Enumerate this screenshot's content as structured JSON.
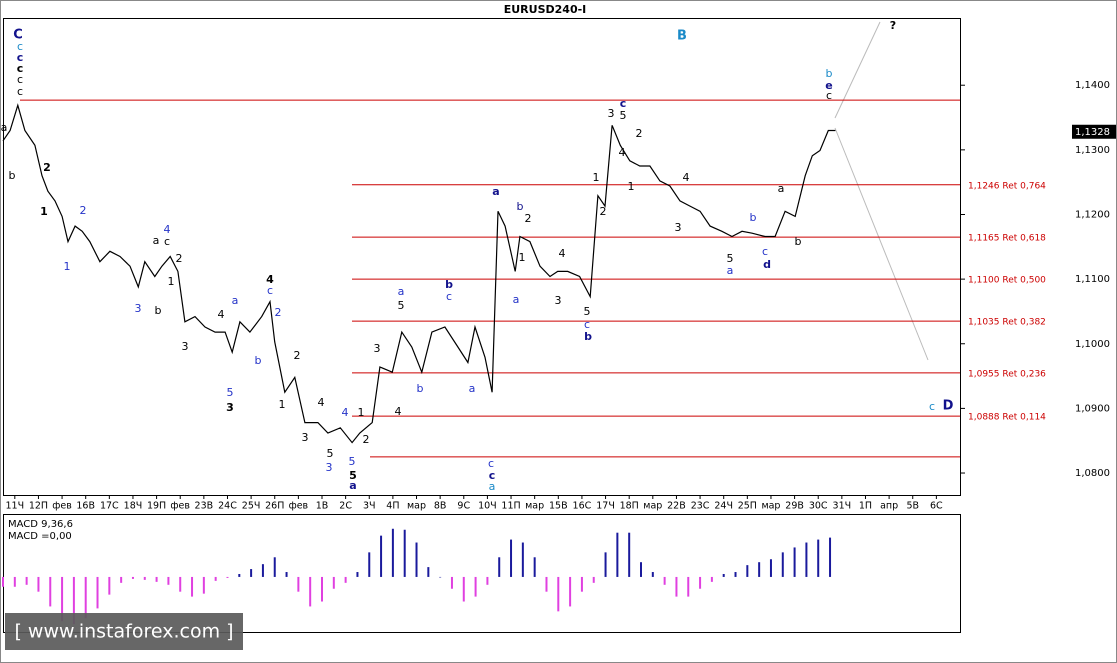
{
  "chart_data": [
    {
      "type": "line",
      "title": "EURUSD240-I",
      "x": [
        -2,
        -0.8,
        0.5,
        1.7,
        3.4,
        4.6,
        5.6,
        6.8,
        8.0,
        9.0,
        10.2,
        11.4,
        12.7,
        14.4,
        16.1,
        17.8,
        19.5,
        20.9,
        22.0,
        23.7,
        24.9,
        26.3,
        27.6,
        28.8,
        30.5,
        32.2,
        33.9,
        35.6,
        36.8,
        38.1,
        39.8,
        41.8,
        43.2,
        44.0,
        45.7,
        47.4,
        49.1,
        51.3,
        53.0,
        55.1,
        57.1,
        58.4,
        60.5,
        61.8,
        63.9,
        65.5,
        67.2,
        68.9,
        70.6,
        72.8,
        75.0,
        76.7,
        77.9,
        79.6,
        80.8,
        81.8,
        83.0,
        84.7,
        85.5,
        87.2,
        88.9,
        90.6,
        91.9,
        93.6,
        95.6,
        97.4,
        98.7,
        99.9,
        101.1,
        102.5,
        104.1,
        105.8,
        107.5,
        109.2,
        110.9,
        112.6,
        114.3,
        116.0,
        117.7,
        119.7,
        121.4,
        123.1,
        124.8,
        127.0,
        128.7,
        130.4,
        132.1,
        133.8,
        135.0,
        136.3,
        137.7,
        138.9
      ],
      "series": [
        {
          "color": "#000000",
          "values": [
            1.1314,
            1.133,
            1.1369,
            1.133,
            1.1307,
            1.126,
            1.1236,
            1.1221,
            1.1197,
            1.1158,
            1.1182,
            1.1174,
            1.1158,
            1.1127,
            1.1143,
            1.1135,
            1.112,
            1.1088,
            1.1127,
            1.1104,
            1.112,
            1.1135,
            1.1112,
            1.1034,
            1.1042,
            1.1026,
            1.1018,
            1.1018,
            1.0987,
            1.1034,
            1.1018,
            1.1042,
            1.1065,
            1.1003,
            1.0925,
            1.0948,
            1.0878,
            1.0878,
            1.0862,
            1.087,
            1.0847,
            1.0862,
            1.0878,
            1.0964,
            1.0956,
            1.1018,
            1.0995,
            1.0956,
            1.1018,
            1.1026,
            1.0995,
            1.0971,
            1.1026,
            1.0979,
            1.0925,
            1.1205,
            1.1182,
            1.1112,
            1.1166,
            1.1158,
            1.112,
            1.1104,
            1.1112,
            1.1112,
            1.1104,
            1.1073,
            1.1229,
            1.1213,
            1.1338,
            1.1307,
            1.1283,
            1.1275,
            1.1275,
            1.1252,
            1.1244,
            1.1221,
            1.1213,
            1.1205,
            1.1182,
            1.1174,
            1.1166,
            1.1174,
            1.1171,
            1.1166,
            1.1166,
            1.1205,
            1.1197,
            1.126,
            1.1291,
            1.1299,
            1.133,
            1.133
          ]
        }
      ],
      "xlim": [
        -2,
        160
      ],
      "xticks": [
        {
          "value": 0,
          "label": "11Ч"
        },
        {
          "value": 4,
          "label": "12П"
        },
        {
          "value": 8,
          "label": "фев"
        },
        {
          "value": 12,
          "label": "16В"
        },
        {
          "value": 16,
          "label": "17С"
        },
        {
          "value": 20,
          "label": "18Ч"
        },
        {
          "value": 24,
          "label": "19П"
        },
        {
          "value": 28,
          "label": "фев"
        },
        {
          "value": 32,
          "label": "23В"
        },
        {
          "value": 36,
          "label": "24С"
        },
        {
          "value": 40,
          "label": "25Ч"
        },
        {
          "value": 44,
          "label": "26П"
        },
        {
          "value": 48,
          "label": "фев"
        },
        {
          "value": 52,
          "label": "1В"
        },
        {
          "value": 56,
          "label": "2С"
        },
        {
          "value": 60,
          "label": "3Ч"
        },
        {
          "value": 64,
          "label": "4П"
        },
        {
          "value": 68,
          "label": "мар"
        },
        {
          "value": 72,
          "label": "8В"
        },
        {
          "value": 76,
          "label": "9С"
        },
        {
          "value": 80,
          "label": "10Ч"
        },
        {
          "value": 84,
          "label": "11П"
        },
        {
          "value": 88,
          "label": "мар"
        },
        {
          "value": 92,
          "label": "15В"
        },
        {
          "value": 96,
          "label": "16С"
        },
        {
          "value": 100,
          "label": "17Ч"
        },
        {
          "value": 104,
          "label": "18П"
        },
        {
          "value": 108,
          "label": "мар"
        },
        {
          "value": 112,
          "label": "22В"
        },
        {
          "value": 116,
          "label": "23С"
        },
        {
          "value": 120,
          "label": "24Ч"
        },
        {
          "value": 124,
          "label": "25П"
        },
        {
          "value": 128,
          "label": "мар"
        },
        {
          "value": 132,
          "label": "29В"
        },
        {
          "value": 136,
          "label": "30С"
        },
        {
          "value": 140,
          "label": "31Ч"
        },
        {
          "value": 144,
          "label": "1П"
        },
        {
          "value": 148,
          "label": "апр"
        },
        {
          "value": 152,
          "label": "5В"
        },
        {
          "value": 156,
          "label": "6С"
        }
      ],
      "ylim": [
        1.0766,
        1.1504
      ],
      "yticks": [
        {
          "value": 1.08,
          "label": "1,0800"
        },
        {
          "value": 1.09,
          "label": "1,0900"
        },
        {
          "value": 1.1,
          "label": "1,1000"
        },
        {
          "value": 1.11,
          "label": "1,1100"
        },
        {
          "value": 1.12,
          "label": "1,1200"
        },
        {
          "value": 1.13,
          "label": "1,1300"
        },
        {
          "value": 1.14,
          "label": "1,1400"
        }
      ],
      "last_price": {
        "value": 1.1328,
        "label": "1,1328"
      },
      "level_color": "#cc0000",
      "levels": [
        {
          "value": 1.1377
        },
        {
          "value": 1.1246,
          "label": "1,1246 Ret 0,764"
        },
        {
          "value": 1.1165,
          "label": "1,1165 Ret 0,618"
        },
        {
          "value": 1.11,
          "label": "1,1100 Ret 0,500"
        },
        {
          "value": 1.1035,
          "label": "1,1035 Ret 0,382"
        },
        {
          "value": 1.0955,
          "label": "1,0955 Ret 0,236"
        },
        {
          "value": 1.0888,
          "label": "1,0888 Ret 0,114"
        },
        {
          "value": 1.0825
        }
      ],
      "annotations": [
        {
          "text": "C",
          "color": "#12128c"
        },
        {
          "text": "c",
          "color": "#1a8ac8"
        },
        {
          "text": "c",
          "color": "#12128c"
        },
        {
          "text": "c",
          "color": "#000000"
        },
        {
          "text": "c",
          "color": "#000000"
        },
        {
          "text": "c",
          "color": "#000000"
        },
        {
          "text": "a",
          "color": "#000000"
        },
        {
          "text": "b",
          "color": "#000000"
        },
        {
          "text": "2",
          "color": "#000000"
        },
        {
          "text": "1",
          "color": "#000000"
        },
        {
          "text": "2",
          "color": "#2433c8"
        },
        {
          "text": "1",
          "color": "#2433c8"
        },
        {
          "text": "4",
          "color": "#2433c8"
        },
        {
          "text": "a",
          "color": "#000000"
        },
        {
          "text": "c",
          "color": "#000000"
        },
        {
          "text": "2",
          "color": "#000000"
        },
        {
          "text": "1",
          "color": "#000000"
        },
        {
          "text": "3",
          "color": "#2433c8"
        },
        {
          "text": "b",
          "color": "#000000"
        },
        {
          "text": "3",
          "color": "#000000"
        },
        {
          "text": "4",
          "color": "#000000"
        },
        {
          "text": "a",
          "color": "#2433c8"
        },
        {
          "text": "c",
          "color": "#2433c8"
        },
        {
          "text": "4",
          "color": "#000000"
        },
        {
          "text": "2",
          "color": "#2433c8"
        },
        {
          "text": "b",
          "color": "#2433c8"
        },
        {
          "text": "5",
          "color": "#2433c8"
        },
        {
          "text": "3",
          "color": "#000000"
        },
        {
          "text": "2",
          "color": "#000000"
        },
        {
          "text": "1",
          "color": "#000000"
        },
        {
          "text": "4",
          "color": "#000000"
        },
        {
          "text": "3",
          "color": "#000000"
        },
        {
          "text": "5",
          "color": "#000000"
        },
        {
          "text": "3",
          "color": "#2433c8"
        },
        {
          "text": "4",
          "color": "#2433c8"
        },
        {
          "text": "1",
          "color": "#000000"
        },
        {
          "text": "2",
          "color": "#000000"
        },
        {
          "text": "5",
          "color": "#2433c8"
        },
        {
          "text": "5",
          "color": "#000000"
        },
        {
          "text": "a",
          "color": "#12128c"
        },
        {
          "text": "3",
          "color": "#000000"
        },
        {
          "text": "a",
          "color": "#2433c8"
        },
        {
          "text": "5",
          "color": "#000000"
        },
        {
          "text": "4",
          "color": "#000000"
        },
        {
          "text": "b",
          "color": "#12128c"
        },
        {
          "text": "c",
          "color": "#2433c8"
        },
        {
          "text": "b",
          "color": "#2433c8"
        },
        {
          "text": "a",
          "color": "#2433c8"
        },
        {
          "text": "c",
          "color": "#2433c8"
        },
        {
          "text": "c",
          "color": "#12128c"
        },
        {
          "text": "a",
          "color": "#1a8ac8"
        },
        {
          "text": "a",
          "color": "#12128c"
        },
        {
          "text": "b",
          "color": "#12128c"
        },
        {
          "text": "2",
          "color": "#000000"
        },
        {
          "text": "1",
          "color": "#000000"
        },
        {
          "text": "a",
          "color": "#2433c8"
        },
        {
          "text": "4",
          "color": "#000000"
        },
        {
          "text": "3",
          "color": "#000000"
        },
        {
          "text": "5",
          "color": "#000000"
        },
        {
          "text": "c",
          "color": "#2433c8"
        },
        {
          "text": "b",
          "color": "#12128c"
        },
        {
          "text": "1",
          "color": "#000000"
        },
        {
          "text": "2",
          "color": "#000000"
        },
        {
          "text": "3",
          "color": "#000000"
        },
        {
          "text": "c",
          "color": "#12128c"
        },
        {
          "text": "5",
          "color": "#000000"
        },
        {
          "text": "4",
          "color": "#000000"
        },
        {
          "text": "2",
          "color": "#000000"
        },
        {
          "text": "1",
          "color": "#000000"
        },
        {
          "text": "4",
          "color": "#000000"
        },
        {
          "text": "3",
          "color": "#000000"
        },
        {
          "text": "5",
          "color": "#000000"
        },
        {
          "text": "a",
          "color": "#2433c8"
        },
        {
          "text": "b",
          "color": "#2433c8"
        },
        {
          "text": "c",
          "color": "#2433c8"
        },
        {
          "text": "d",
          "color": "#12128c"
        },
        {
          "text": "a",
          "color": "#000000"
        },
        {
          "text": "b",
          "color": "#000000"
        },
        {
          "text": "b",
          "color": "#1a8ac8"
        },
        {
          "text": "e",
          "color": "#12128c"
        },
        {
          "text": "c",
          "color": "#000000"
        },
        {
          "text": "B",
          "color": "#1a8ac8"
        },
        {
          "text": "?",
          "color": "#000000"
        },
        {
          "text": "c",
          "color": "#1a8ac8"
        },
        {
          "text": "D",
          "color": "#12128c"
        }
      ]
    },
    {
      "type": "bar",
      "title": "MACD 9,36,6",
      "subtitle": "MACD =0,00",
      "x": [
        -2,
        0,
        2,
        4,
        6,
        8,
        10,
        12,
        14,
        16,
        18,
        20,
        22,
        24,
        26,
        28,
        30,
        32,
        34,
        36,
        38,
        40,
        42,
        44,
        46,
        48,
        50,
        52,
        54,
        56,
        58,
        60,
        62,
        64,
        66,
        68,
        70,
        72,
        74,
        76,
        78,
        80,
        82,
        84,
        86,
        88,
        90,
        92,
        94,
        96,
        98,
        100,
        102,
        104,
        106,
        108,
        110,
        112,
        114,
        116,
        118,
        120,
        122,
        124,
        126,
        128,
        130,
        132,
        134,
        136,
        138
      ],
      "values": [
        -0.001,
        -0.001,
        -0.0008,
        -0.0015,
        -0.003,
        -0.0045,
        -0.0048,
        -0.0042,
        -0.0032,
        -0.0018,
        -0.0006,
        -0.0002,
        -0.0003,
        -0.0005,
        -0.0008,
        -0.0015,
        -0.002,
        -0.0017,
        -0.0004,
        -0.0001,
        0.0003,
        0.0008,
        0.0013,
        0.002,
        0.0005,
        -0.0015,
        -0.003,
        -0.0025,
        -0.0012,
        -0.0006,
        0.0005,
        0.0025,
        0.0042,
        0.0049,
        0.0048,
        0.0035,
        0.001,
        0,
        -0.0012,
        -0.0025,
        -0.002,
        -0.0008,
        0.002,
        0.0038,
        0.0035,
        0.002,
        -0.0015,
        -0.0035,
        -0.003,
        -0.0015,
        -0.0006,
        0.0025,
        0.0045,
        0.0045,
        0.0015,
        0.0005,
        -0.0008,
        -0.002,
        -0.002,
        -0.0012,
        -0.0005,
        0.0003,
        0.0005,
        0.0012,
        0.0015,
        0.0018,
        0.0025,
        0.003,
        0.0035,
        0.0038,
        0.004
      ],
      "xlim": [
        -2,
        160
      ],
      "ylim": [
        -0.0056,
        0.0063
      ],
      "positive_color": "#1a1a9c",
      "negative_color": "#e040e0"
    }
  ],
  "watermark": "[ www.instaforex.com ]"
}
